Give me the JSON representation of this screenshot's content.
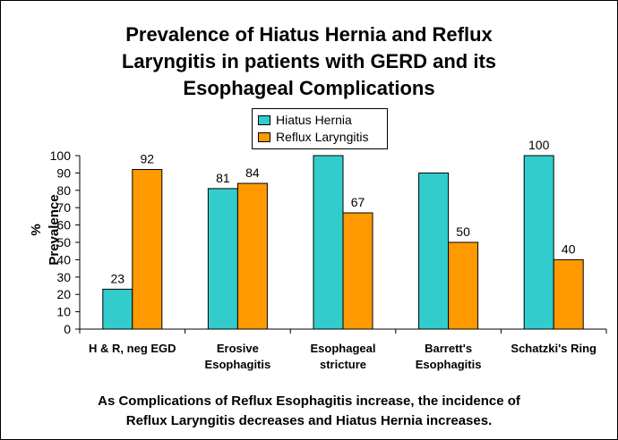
{
  "chart_data": {
    "type": "bar",
    "title_lines": [
      "Prevalence of Hiatus Hernia and Reflux",
      "Laryngitis in patients with GERD and its",
      "Esophageal Complications"
    ],
    "ylabel": "% Prevalence",
    "xlabel": "",
    "ylim": [
      0,
      100
    ],
    "yticks": [
      "0",
      "10",
      "20",
      "30",
      "40",
      "50",
      "60",
      "70",
      "80",
      "90",
      "100"
    ],
    "categories": [
      [
        "H & R, neg EGD"
      ],
      [
        "Erosive",
        "Esophagitis"
      ],
      [
        "Esophageal",
        "stricture"
      ],
      [
        "Barrett's",
        "Esophagitis"
      ],
      [
        "Schatzki's Ring"
      ]
    ],
    "series": [
      {
        "name": "Hiatus Hernia",
        "color": "#33CCCC",
        "values": [
          23,
          81,
          100,
          90,
          100
        ],
        "labels": [
          "23",
          "81",
          "",
          "",
          "100"
        ]
      },
      {
        "name": "Reflux Laryngitis",
        "color": "#FF9900",
        "values": [
          92,
          84,
          67,
          50,
          40
        ],
        "labels": [
          "92",
          "84",
          "67",
          "50",
          "40"
        ]
      }
    ],
    "legend": "top-center",
    "grid": false,
    "annotation": [
      "As Complications of Reflux Esophagitis increase, the incidence of",
      "Reflux Laryngitis decreases and Hiatus Hernia increases."
    ]
  }
}
